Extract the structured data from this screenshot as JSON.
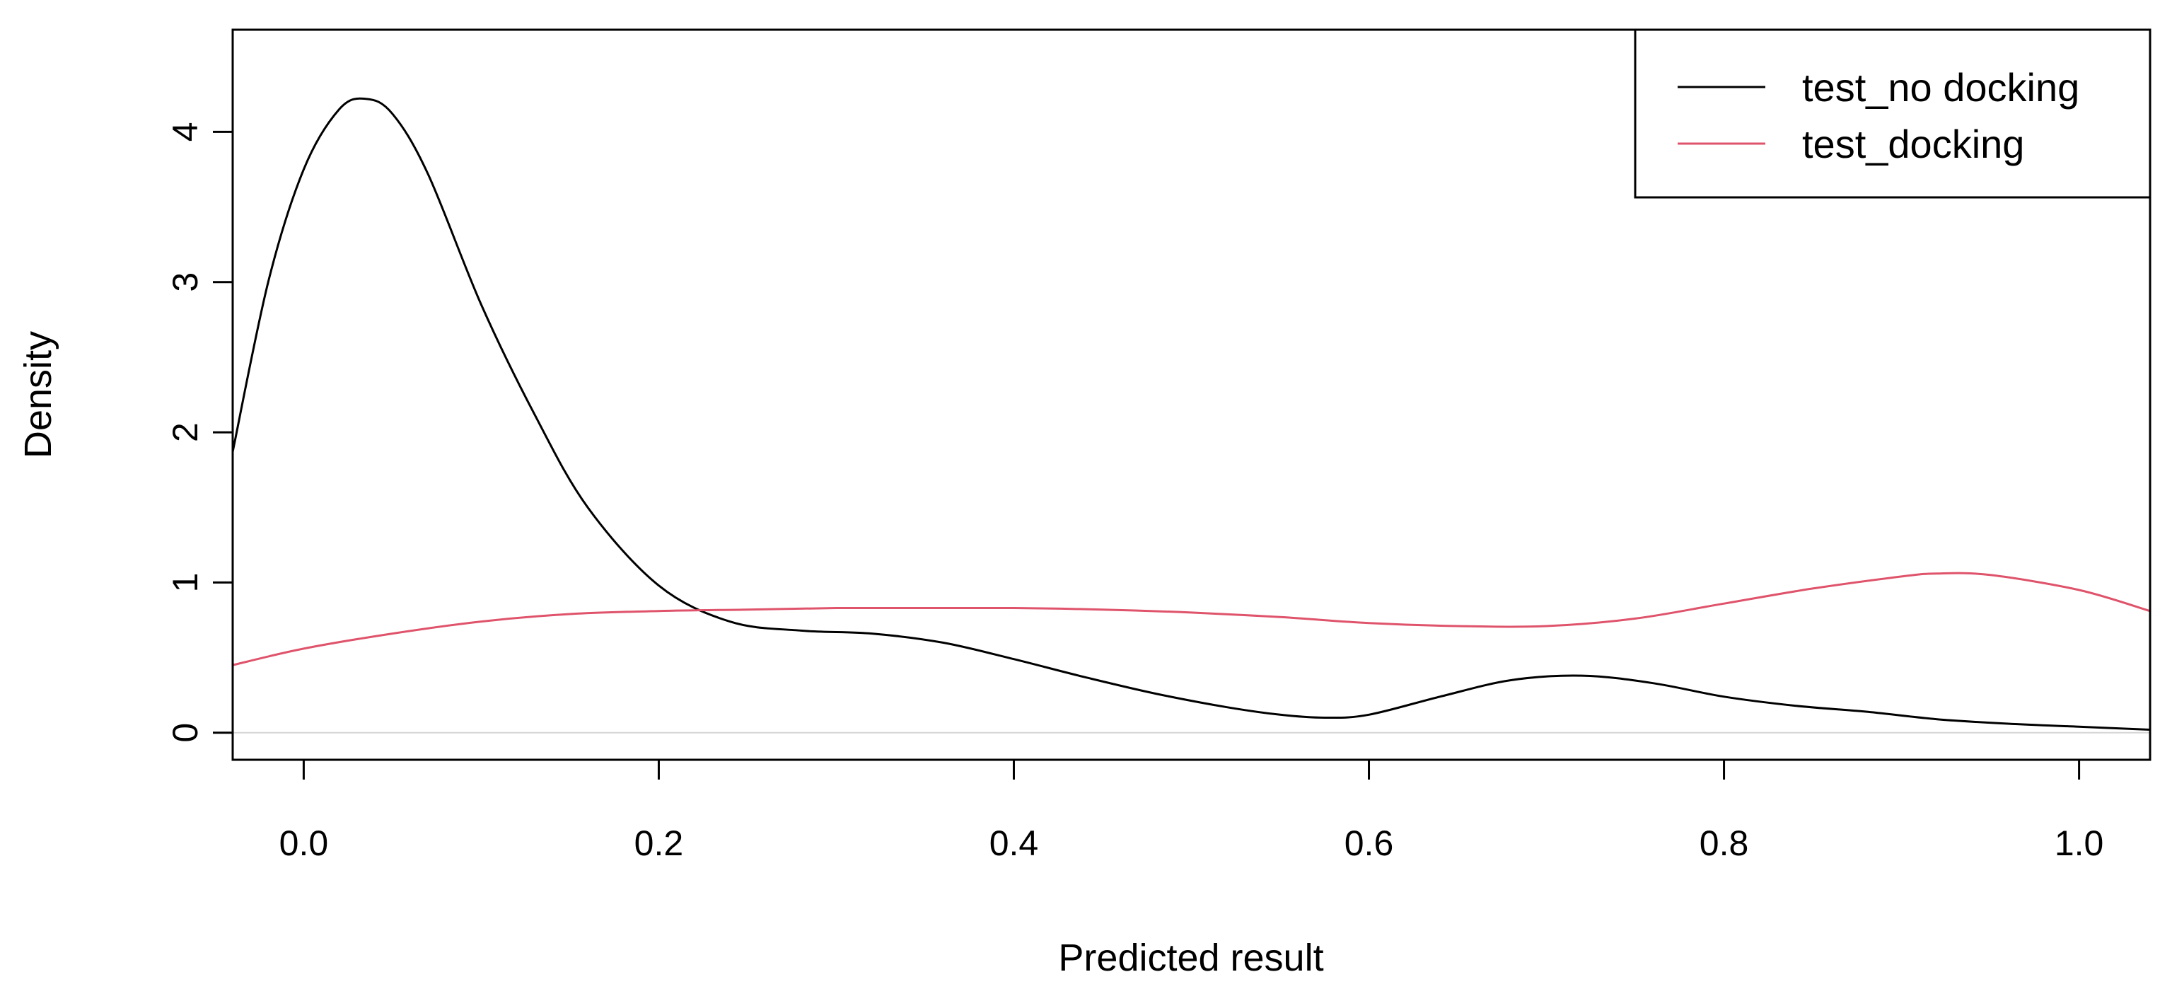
{
  "chart_data": {
    "type": "line",
    "title": "",
    "xlabel": "Predicted result",
    "ylabel": "Density",
    "xlim": [
      -0.04,
      1.04
    ],
    "ylim": [
      -0.18,
      4.68
    ],
    "xticks": [
      0.0,
      0.2,
      0.4,
      0.6,
      0.8,
      1.0
    ],
    "xtick_labels": [
      "0.0",
      "0.2",
      "0.4",
      "0.6",
      "0.8",
      "1.0"
    ],
    "yticks": [
      0,
      1,
      2,
      3,
      4
    ],
    "ytick_labels": [
      "0",
      "1",
      "2",
      "3",
      "4"
    ],
    "zero_baseline": true,
    "grid": false,
    "legend_position": "top-right",
    "series": [
      {
        "name": "test_no docking",
        "color": "#000000",
        "x": [
          -0.04,
          -0.02,
          0.0,
          0.02,
          0.035,
          0.05,
          0.07,
          0.1,
          0.13,
          0.16,
          0.2,
          0.24,
          0.28,
          0.32,
          0.36,
          0.4,
          0.44,
          0.48,
          0.52,
          0.55,
          0.575,
          0.6,
          0.64,
          0.68,
          0.72,
          0.76,
          0.8,
          0.84,
          0.88,
          0.92,
          0.96,
          1.0,
          1.04
        ],
        "y": [
          1.87,
          3.0,
          3.75,
          4.15,
          4.22,
          4.12,
          3.72,
          2.85,
          2.12,
          1.5,
          0.98,
          0.74,
          0.68,
          0.66,
          0.6,
          0.49,
          0.37,
          0.26,
          0.17,
          0.12,
          0.1,
          0.12,
          0.24,
          0.35,
          0.38,
          0.33,
          0.24,
          0.18,
          0.14,
          0.09,
          0.06,
          0.04,
          0.02
        ]
      },
      {
        "name": "test_docking",
        "color": "#DF536B",
        "x": [
          -0.04,
          0.0,
          0.05,
          0.1,
          0.15,
          0.2,
          0.25,
          0.3,
          0.35,
          0.4,
          0.45,
          0.5,
          0.55,
          0.6,
          0.65,
          0.7,
          0.75,
          0.8,
          0.85,
          0.9,
          0.92,
          0.95,
          1.0,
          1.04
        ],
        "y": [
          0.45,
          0.56,
          0.66,
          0.74,
          0.79,
          0.81,
          0.82,
          0.83,
          0.83,
          0.83,
          0.82,
          0.8,
          0.77,
          0.73,
          0.71,
          0.71,
          0.76,
          0.86,
          0.96,
          1.04,
          1.06,
          1.05,
          0.95,
          0.81
        ]
      }
    ]
  }
}
